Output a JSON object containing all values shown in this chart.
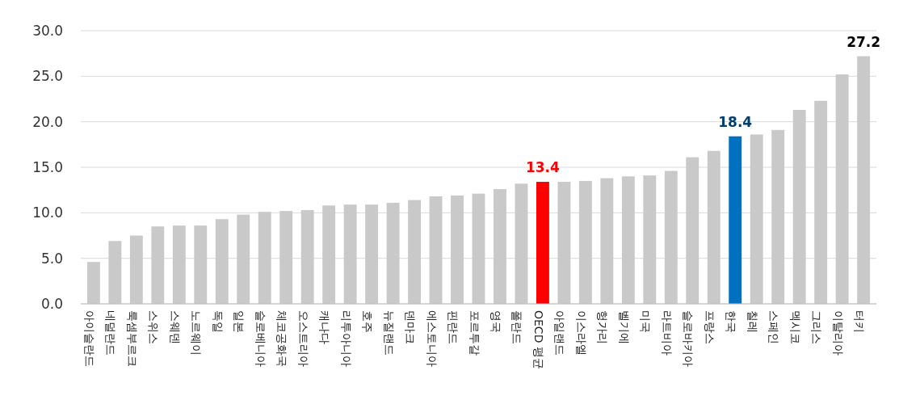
{
  "chart_data": {
    "type": "bar",
    "categories": [
      "아이슬란드",
      "네덜란드",
      "룩셈부르크",
      "스위스",
      "스웨덴",
      "노르웨이",
      "독일",
      "일본",
      "슬로베니아",
      "체코공화국",
      "오스트리아",
      "캐나다",
      "리투아니아",
      "호주",
      "뉴질랜드",
      "덴마크",
      "에스토니아",
      "핀란드",
      "포르투갈",
      "영국",
      "폴란드",
      "OECD 평균",
      "아일랜드",
      "이스라엘",
      "헝가리",
      "벨기에",
      "미국",
      "라트비아",
      "슬로바키아",
      "프랑스",
      "한국",
      "칠레",
      "스페인",
      "멕시코",
      "그리스",
      "이탈리아",
      "터키"
    ],
    "values": [
      4.6,
      6.9,
      7.5,
      8.5,
      8.6,
      8.6,
      9.3,
      9.8,
      10.1,
      10.2,
      10.3,
      10.8,
      10.9,
      10.9,
      11.1,
      11.4,
      11.8,
      11.9,
      12.1,
      12.6,
      13.2,
      13.4,
      13.4,
      13.5,
      13.8,
      14.0,
      14.1,
      14.6,
      16.1,
      16.8,
      18.4,
      18.6,
      19.1,
      21.3,
      22.3,
      25.2,
      27.2
    ],
    "colors": [
      "#c9c9c9",
      "#c9c9c9",
      "#c9c9c9",
      "#c9c9c9",
      "#c9c9c9",
      "#c9c9c9",
      "#c9c9c9",
      "#c9c9c9",
      "#c9c9c9",
      "#c9c9c9",
      "#c9c9c9",
      "#c9c9c9",
      "#c9c9c9",
      "#c9c9c9",
      "#c9c9c9",
      "#c9c9c9",
      "#c9c9c9",
      "#c9c9c9",
      "#c9c9c9",
      "#c9c9c9",
      "#c9c9c9",
      "#ff0000",
      "#c9c9c9",
      "#c9c9c9",
      "#c9c9c9",
      "#c9c9c9",
      "#c9c9c9",
      "#c9c9c9",
      "#c9c9c9",
      "#c9c9c9",
      "#0070c0",
      "#c9c9c9",
      "#c9c9c9",
      "#c9c9c9",
      "#c9c9c9",
      "#c9c9c9",
      "#c9c9c9"
    ],
    "value_labels": [
      null,
      null,
      null,
      null,
      null,
      null,
      null,
      null,
      null,
      null,
      null,
      null,
      null,
      null,
      null,
      null,
      null,
      null,
      null,
      null,
      null,
      "13.4",
      null,
      null,
      null,
      null,
      null,
      null,
      null,
      null,
      "18.4",
      null,
      null,
      null,
      null,
      null,
      "27.2"
    ],
    "ylim": [
      0,
      30
    ],
    "yticks": [
      {
        "value": 0,
        "label": "0.0"
      },
      {
        "value": 5,
        "label": "5.0"
      },
      {
        "value": 10,
        "label": "10.0"
      },
      {
        "value": 15,
        "label": "15.0"
      },
      {
        "value": 20,
        "label": "20.0"
      },
      {
        "value": 25,
        "label": "25.0"
      },
      {
        "value": 30,
        "label": "30.0"
      }
    ],
    "grid": "y"
  }
}
